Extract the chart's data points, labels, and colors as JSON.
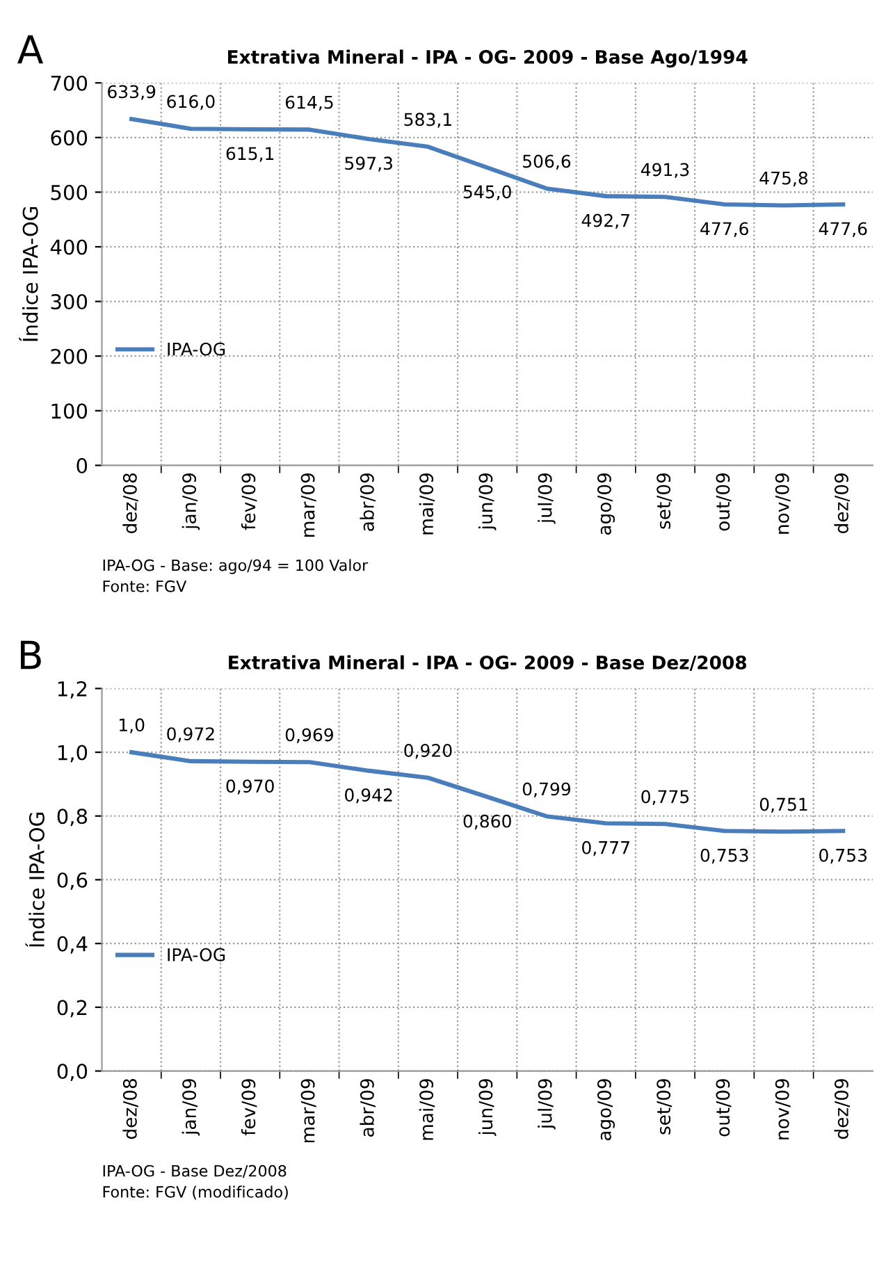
{
  "chart_data": [
    {
      "type": "line",
      "title": "Extrativa Mineral - IPA - OG- 2009 - Base Ago/1994",
      "ylabel": "Índice IPA-OG",
      "categories": [
        "dez/08",
        "jan/09",
        "fev/09",
        "mar/09",
        "abr/09",
        "mai/09",
        "jun/09",
        "jul/09",
        "ago/09",
        "set/09",
        "out/09",
        "nov/09",
        "dez/09"
      ],
      "series": [
        {
          "name": "IPA-OG",
          "color": "#4a7ebb",
          "values": [
            633.9,
            616.0,
            615.1,
            614.5,
            597.3,
            583.1,
            545.0,
            506.6,
            492.7,
            491.3,
            477.6,
            475.8,
            477.6
          ],
          "value_labels": [
            "633,9",
            "616,0",
            "615,1",
            "614,5",
            "597,3",
            "583,1",
            "545,0",
            "506,6",
            "492,7",
            "491,3",
            "477,6",
            "475,8",
            "477,6"
          ]
        }
      ],
      "ylim": [
        0,
        700
      ],
      "yticks": [
        0,
        100,
        200,
        300,
        400,
        500,
        600,
        700
      ],
      "grid": true,
      "legend": "left",
      "marker": "none",
      "annotations": [
        "A",
        "IPA-OG - Base: ago/94 = 100 Valor",
        "Fonte: FGV"
      ]
    },
    {
      "type": "line",
      "title": "Extrativa Mineral - IPA - OG- 2009 - Base Dez/2008",
      "ylabel": "Índice IPA-OG",
      "categories": [
        "dez/08",
        "jan/09",
        "fev/09",
        "mar/09",
        "abr/09",
        "mai/09",
        "jun/09",
        "jul/09",
        "ago/09",
        "set/09",
        "out/09",
        "nov/09",
        "dez/09"
      ],
      "series": [
        {
          "name": "IPA-OG",
          "color": "#4a7ebb",
          "values": [
            1.0,
            0.972,
            0.97,
            0.969,
            0.942,
            0.92,
            0.86,
            0.799,
            0.777,
            0.775,
            0.753,
            0.751,
            0.753
          ],
          "value_labels": [
            "1,0",
            "0,972",
            "0,970",
            "0,969",
            "0,942",
            "0,920",
            "0,860",
            "0,799",
            "0,777",
            "0,775",
            "0,753",
            "0,751",
            "0,753"
          ]
        }
      ],
      "ylim": [
        0,
        1.2
      ],
      "yticks": [
        {
          "value": 0,
          "label": "0,0"
        },
        {
          "value": 0.2,
          "label": "0,2"
        },
        {
          "value": 0.4,
          "label": "0,4"
        },
        {
          "value": 0.6,
          "label": "0,6"
        },
        {
          "value": 0.8,
          "label": "0,8"
        },
        {
          "value": 1.0,
          "label": "1,0"
        },
        {
          "value": 1.2,
          "label": "1,2"
        }
      ],
      "grid": true,
      "legend": "left",
      "marker": "none",
      "annotations": [
        "B",
        "IPA-OG - Base Dez/2008",
        "Fonte: FGV (modificado)"
      ]
    }
  ]
}
